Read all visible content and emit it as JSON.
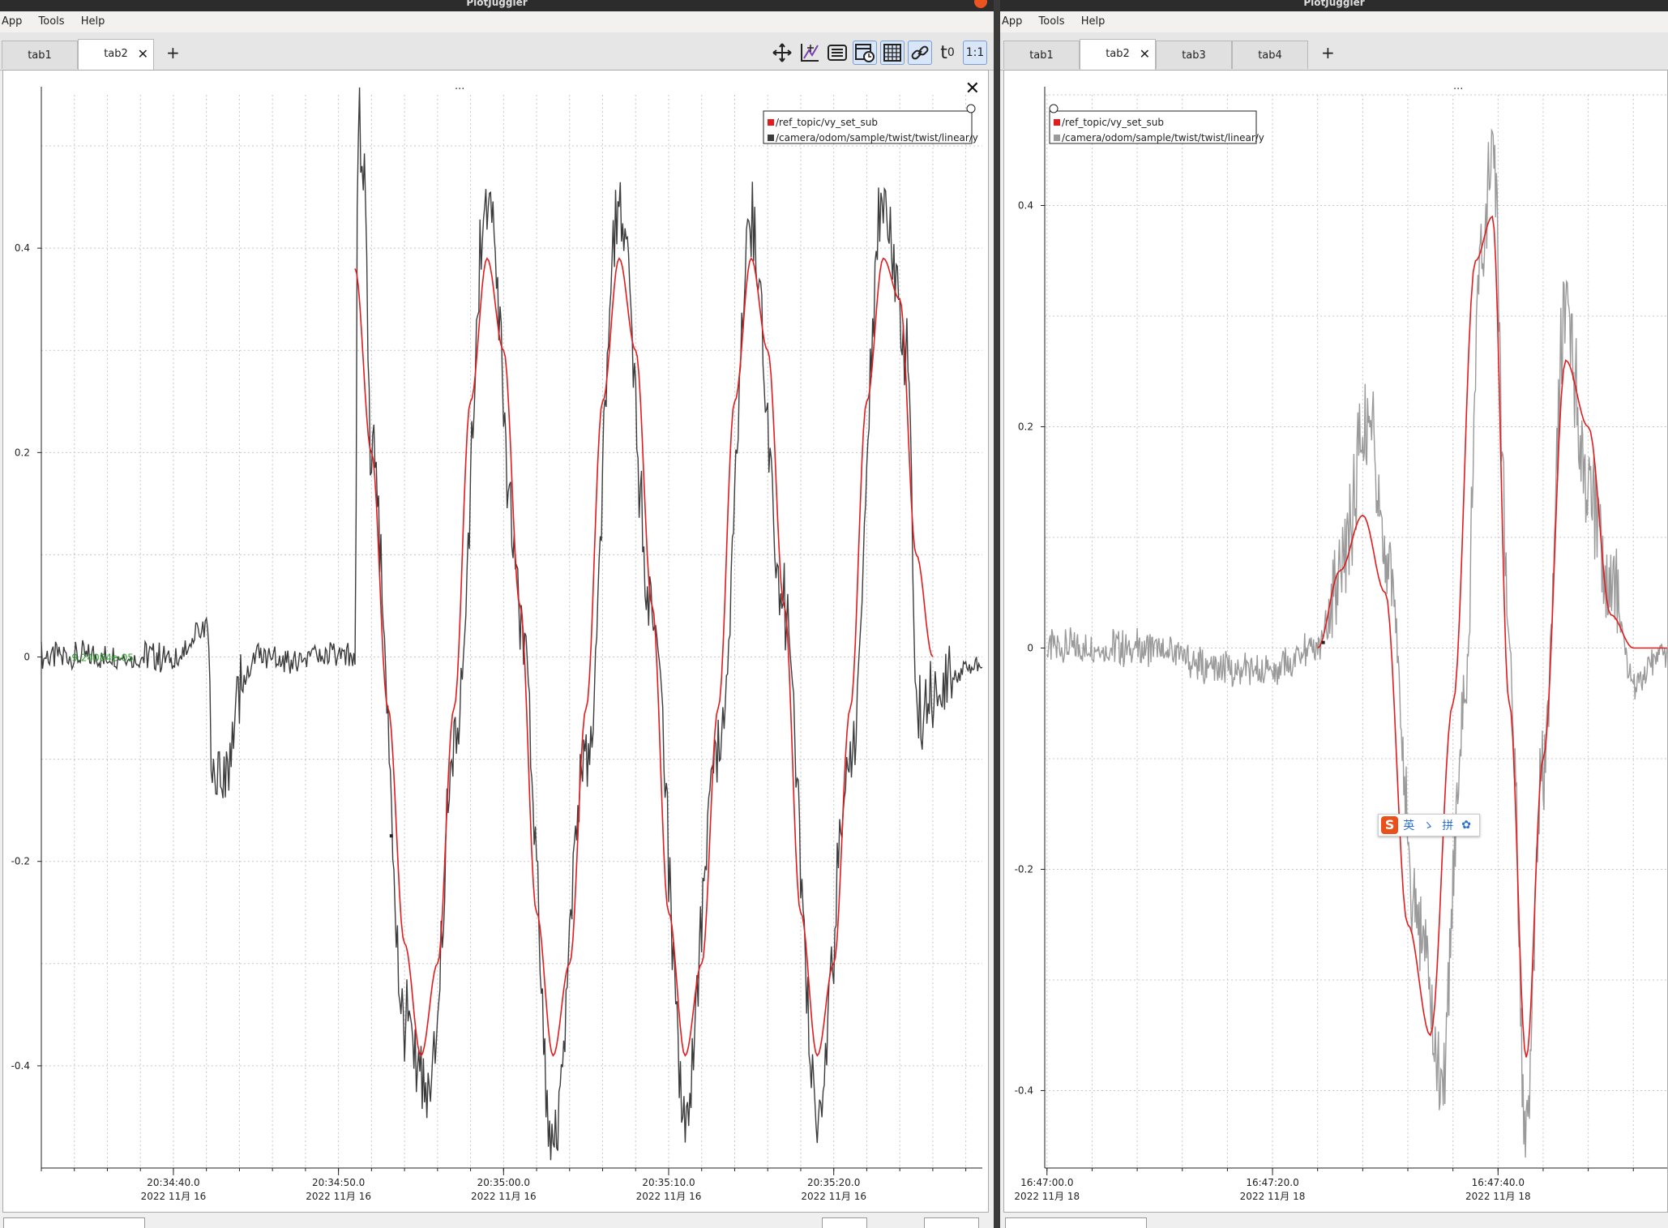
{
  "app_title": "PlotJuggler",
  "menu": [
    "App",
    "Tools",
    "Help"
  ],
  "left_window": {
    "tabs": [
      "tab1",
      "tab2"
    ],
    "active_tab": "tab2",
    "tab_close": "✕",
    "add_tab": "+",
    "toolbar": {
      "t0": "t",
      "t0_sub": "0",
      "ratio": "1:1"
    },
    "plot_dots": "...",
    "plot_close": "✕",
    "cursor_value": "-9.24084e-05"
  },
  "right_window": {
    "tabs": [
      "tab1",
      "tab2",
      "tab3",
      "tab4"
    ],
    "active_tab": "tab2",
    "tab_close": "✕",
    "add_tab": "+",
    "plot_dots": "..."
  },
  "ime": {
    "logo": "S",
    "items": [
      "英",
      "ゝ",
      "拼",
      "✿"
    ]
  },
  "colors": {
    "ref": "#e41a1c",
    "meas_left": "#3c3c3c",
    "meas_right": "#9a9a9a",
    "cursor_text": "#2ca02c"
  },
  "chart_data": [
    {
      "type": "line",
      "title": "",
      "xlabel": "",
      "ylabel": "",
      "ylim": [
        -0.5,
        0.55
      ],
      "xlim": [
        "20:34:32",
        "20:35:29"
      ],
      "grid": true,
      "legend_position": "top-right",
      "yticks": [
        0.4,
        0.2,
        0,
        -0.2,
        -0.4
      ],
      "ytick_labels": [
        "0.4",
        "0.2",
        "0",
        "-0.2",
        "-0.4"
      ],
      "xticks": [
        "20:34:40.0",
        "20:34:50.0",
        "20:35:00.0",
        "20:35:10.0",
        "20:35:20.0"
      ],
      "xtick_date": "2022 11月 16",
      "series": [
        {
          "name": "/ref_topic/vy_set_sub",
          "color": "#e41a1c",
          "x": [
            "20:34:51",
            "20:34:52",
            "20:34:53",
            "20:34:54",
            "20:34:55",
            "20:34:56",
            "20:34:57",
            "20:34:58",
            "20:34:59",
            "20:35:00",
            "20:35:01",
            "20:35:02",
            "20:35:03",
            "20:35:04",
            "20:35:05",
            "20:35:06",
            "20:35:07",
            "20:35:08",
            "20:35:09",
            "20:35:10",
            "20:35:11",
            "20:35:12",
            "20:35:13",
            "20:35:14",
            "20:35:15",
            "20:35:16",
            "20:35:17",
            "20:35:18",
            "20:35:19",
            "20:35:20",
            "20:35:21",
            "20:35:22",
            "20:35:23",
            "20:35:24",
            "20:35:25",
            "20:35:26"
          ],
          "values": [
            0.38,
            0.2,
            -0.05,
            -0.28,
            -0.39,
            -0.3,
            -0.05,
            0.25,
            0.39,
            0.3,
            0.05,
            -0.25,
            -0.39,
            -0.3,
            -0.05,
            0.25,
            0.39,
            0.3,
            0.05,
            -0.25,
            -0.39,
            -0.3,
            -0.05,
            0.25,
            0.39,
            0.3,
            0.05,
            -0.25,
            -0.39,
            -0.3,
            -0.05,
            0.25,
            0.39,
            0.35,
            0.1,
            0.0
          ]
        },
        {
          "name": "/camera/odom/sample/twist/twist/linear/y",
          "color": "#3c3c3c",
          "x": [
            "20:34:32",
            "20:34:40",
            "20:34:42",
            "20:34:42.5",
            "20:34:45",
            "20:34:51",
            "20:34:51.2",
            "20:34:51.5",
            "20:34:52",
            "20:34:54",
            "20:34:55.5",
            "20:34:57",
            "20:34:59",
            "20:35:01",
            "20:35:03",
            "20:35:05",
            "20:35:07",
            "20:35:09",
            "20:35:11",
            "20:35:13",
            "20:35:15",
            "20:35:17",
            "20:35:19",
            "20:35:21",
            "20:35:23",
            "20:35:24.5",
            "20:35:25",
            "20:35:29"
          ],
          "values": [
            0.0,
            0.0,
            0.03,
            -0.13,
            0.0,
            0.0,
            0.55,
            0.48,
            0.2,
            -0.35,
            -0.44,
            -0.1,
            0.45,
            0.05,
            -0.47,
            -0.1,
            0.44,
            0.05,
            -0.44,
            -0.1,
            0.42,
            0.05,
            -0.45,
            -0.1,
            0.44,
            0.3,
            -0.05,
            -0.01
          ]
        }
      ]
    },
    {
      "type": "line",
      "title": "",
      "xlabel": "",
      "ylabel": "",
      "ylim": [
        -0.47,
        0.5
      ],
      "xlim": [
        "16:46:59.8",
        "16:47:55"
      ],
      "grid": true,
      "legend_position": "top-left",
      "yticks": [
        0.4,
        0.2,
        0,
        -0.2,
        -0.4
      ],
      "ytick_labels": [
        "0.4",
        "0.2",
        "0",
        "-0.2",
        "-0.4"
      ],
      "xticks": [
        "16:47:00.0",
        "16:47:20.0",
        "16:47:40.0"
      ],
      "xtick_date": "2022 11月 18",
      "series": [
        {
          "name": "/ref_topic/vy_set_sub",
          "color": "#e41a1c",
          "x": [
            "16:47:24",
            "16:47:26",
            "16:47:28",
            "16:47:30",
            "16:47:32",
            "16:47:34",
            "16:47:36",
            "16:47:38",
            "16:47:39.5",
            "16:47:41",
            "16:47:42.5",
            "16:47:44",
            "16:47:46",
            "16:47:48",
            "16:47:50",
            "16:47:52",
            "16:47:55"
          ],
          "values": [
            0.0,
            0.07,
            0.12,
            0.05,
            -0.25,
            -0.35,
            -0.05,
            0.35,
            0.39,
            -0.05,
            -0.37,
            -0.1,
            0.26,
            0.2,
            0.03,
            0.0,
            0.0
          ]
        },
        {
          "name": "/camera/odom/sample/twist/twist/linear/y",
          "color": "#9a9a9a",
          "x": [
            "16:47:00",
            "16:47:10",
            "16:47:15",
            "16:47:20",
            "16:47:24",
            "16:47:26",
            "16:47:28.5",
            "16:47:30",
            "16:47:33",
            "16:47:35",
            "16:47:37",
            "16:47:38.5",
            "16:47:39.5",
            "16:47:41",
            "16:47:42.5",
            "16:47:44",
            "16:47:46",
            "16:47:48",
            "16:47:50",
            "16:47:52",
            "16:47:55"
          ],
          "values": [
            0.0,
            0.0,
            -0.02,
            -0.02,
            0.0,
            0.08,
            0.2,
            0.1,
            -0.25,
            -0.39,
            -0.05,
            0.35,
            0.46,
            0.0,
            -0.43,
            -0.1,
            0.3,
            0.15,
            0.05,
            -0.03,
            0.0
          ]
        }
      ]
    }
  ]
}
